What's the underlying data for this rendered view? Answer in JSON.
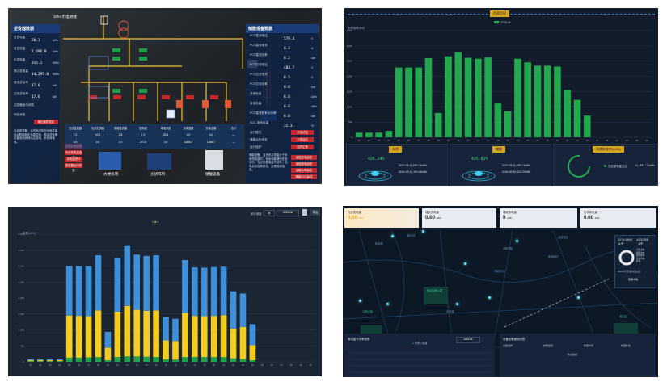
{
  "top_left": {
    "line_title": "10kV市电进线",
    "left_panel": {
      "title": "逆变器数据",
      "rows": [
        {
          "label": "日发电量",
          "value": "20.1",
          "unit": "kWh"
        },
        {
          "label": "月发电量",
          "value": "2,696.9",
          "unit": "kWh"
        },
        {
          "label": "年发电量",
          "value": "315.1",
          "unit": "MWh"
        },
        {
          "label": "累计发电量",
          "value": "14,295.0",
          "unit": "MWh"
        },
        {
          "label": "直流总功率",
          "value": "17.6",
          "unit": "kW"
        },
        {
          "label": "交流总功率",
          "value": "17.6",
          "unit": "kW"
        },
        {
          "label": "逆变器运行状态",
          "value": "",
          "unit": ""
        }
      ],
      "buttons": [
        "网关状态",
        "输出保护设定"
      ],
      "description": "光伏逆变器：光伏板中的光伏组件能将太阳能转化为直流电，再由逆变器将直流电转换为交流电，供负荷使用。",
      "red_buttons": [
        "负荷功率曲线",
        "光伏发电量曲线",
        "发电量统计",
        "逆变器运行状态"
      ]
    },
    "right_panel": {
      "title": "储能设备数据",
      "rows": [
        {
          "label": "PCS直流电压",
          "value": "579.4",
          "unit": "V"
        },
        {
          "label": "PCS直流电流",
          "value": "0.4",
          "unit": "A"
        },
        {
          "label": "PCS直流功率",
          "value": "0.2",
          "unit": "kW"
        },
        {
          "label": "PCS交流电压",
          "value": "403.7",
          "unit": "V"
        },
        {
          "label": "PCS交流电流",
          "value": "0.5",
          "unit": "A"
        },
        {
          "label": "PCS交流功率",
          "value": "0.0",
          "unit": "kW"
        },
        {
          "label": "充电电量",
          "value": "0.0",
          "unit": "kWh"
        },
        {
          "label": "放电电量",
          "value": "0.0",
          "unit": "kWh"
        },
        {
          "label": "PCS直流侧有功功率",
          "value": "0.0",
          "unit": "kW"
        },
        {
          "label": "SOC 电池电量",
          "value": "22.3",
          "unit": "%"
        }
      ],
      "status_rows": [
        {
          "label": "运行模式",
          "badge": "充电状态"
        },
        {
          "label": "储能运行状态",
          "badge": "正常运行"
        },
        {
          "label": "运行保护",
          "badge": "保护正常"
        }
      ],
      "description": "储能设备：当光伏发电量大于负荷用电量时，多余电能储存在电池中；当光伏发电量不足时，由电池向负荷供电，实现削峰填谷。",
      "red_buttons": [
        "储能充电曲线",
        "储能放电曲线",
        "储能功率曲线",
        "储能SOC曲线"
      ]
    },
    "top_button": "返回",
    "bottom_labels": [
      "大楼负荷",
      "光伏阵列",
      "储能设备"
    ],
    "table": {
      "headers": [
        "光伏逆变器",
        "光伏汇流箱",
        "储能变流器",
        "配电柜",
        "电池系统",
        "负荷回路",
        "负荷总路",
        "合计"
      ],
      "rows": [
        [
          "7.2",
          "10.3",
          "2.8",
          "7.2",
          "23.4",
          "0.0",
          "0.0",
          "—"
        ],
        [
          "0.8",
          "0.0",
          "1.0",
          "271.5",
          "0.0",
          "3,836.7",
          "1,466.7",
          "—"
        ]
      ]
    }
  },
  "top_right": {
    "chart_title": "负荷功率",
    "legend": "2023-06",
    "unit_label": "负荷功率(kW)",
    "chart_data": {
      "type": "bar",
      "categories": [
        "01",
        "02",
        "03",
        "04",
        "05",
        "06",
        "07",
        "08",
        "09",
        "10",
        "11",
        "12",
        "13",
        "14",
        "15",
        "16",
        "17",
        "18",
        "19",
        "20",
        "21",
        "22",
        "23",
        "24",
        "25",
        "26",
        "27",
        "28",
        "29",
        "30"
      ],
      "values": [
        150,
        150,
        150,
        210,
        2290,
        2290,
        2290,
        2600,
        800,
        2660,
        2800,
        2610,
        2580,
        2620,
        1110,
        850,
        2580,
        2460,
        2350,
        2350,
        2320,
        1550,
        1230,
        710,
        0,
        0,
        0,
        0,
        0,
        0
      ],
      "ylim": [
        0,
        3500
      ],
      "yticks": [
        "0",
        "500",
        "1,000",
        "1,500",
        "2,000",
        "2,500",
        "3,000",
        "3,500"
      ],
      "color": "#22a84f"
    },
    "cards": [
      {
        "title": "光伏",
        "percent": "426.14%",
        "rows": [
          "2023-05    11,885.21kWh",
          "2024-05    41,192.61kWh"
        ]
      },
      {
        "title": "储能",
        "percent": "425.81%",
        "rows": [
          "2023-05    11,885.21kWh",
          "2024-05    42,510.37kWh"
        ]
      },
      {
        "title": "光储发电节(kWh)",
        "legend": "光伏发电量占比",
        "value": "11,883.21kWh"
      }
    ]
  },
  "bottom_left": {
    "controls": {
      "label": "统计维度:",
      "select": "月",
      "date": "2023-06",
      "export": "导出"
    },
    "legend": [
      "■",
      "■",
      "■"
    ],
    "unit_label": "电量(kWh)",
    "chart_data": {
      "type": "bar",
      "categories": [
        "01",
        "02",
        "03",
        "04",
        "05",
        "06",
        "07",
        "08",
        "09",
        "10",
        "11",
        "12",
        "13",
        "14",
        "15",
        "16",
        "17",
        "18",
        "19",
        "20",
        "21",
        "22",
        "23",
        "24",
        "25",
        "26",
        "27",
        "28",
        "29",
        "30"
      ],
      "series": [
        {
          "values": [
            20,
            20,
            20,
            20,
            130,
            130,
            140,
            150,
            50,
            150,
            170,
            170,
            160,
            150,
            80,
            70,
            150,
            150,
            150,
            150,
            150,
            110,
            90,
            50,
            0,
            0,
            0,
            0,
            0,
            0
          ],
          "color": "#1fa24c"
        },
        {
          "values": [
            30,
            30,
            30,
            30,
            1320,
            1310,
            1290,
            1460,
            390,
            1420,
            1580,
            1460,
            1440,
            1460,
            590,
            580,
            1380,
            1290,
            1280,
            1290,
            1310,
            930,
            1000,
            470,
            0,
            0,
            0,
            0,
            0,
            0
          ],
          "color": "#f4cc1d"
        },
        {
          "values": [
            30,
            30,
            30,
            30,
            1550,
            1560,
            1570,
            1730,
            500,
            1680,
            1880,
            1730,
            1720,
            1730,
            740,
            700,
            1660,
            1520,
            1520,
            1530,
            1520,
            1170,
            1050,
            660,
            0,
            0,
            0,
            0,
            0,
            0
          ],
          "color": "#3c8fd8"
        }
      ],
      "ylim": [
        0,
        4000
      ],
      "yticks": [
        "0",
        "500",
        "1,000",
        "1,500",
        "2,000",
        "2,500",
        "3,000",
        "3,500",
        "4,000"
      ]
    }
  },
  "bottom_right": {
    "stats": [
      {
        "title": "光伏发电量",
        "value": "0.00",
        "unit": "kWh"
      },
      {
        "title": "储能充电量",
        "value": "0.00",
        "unit": "kWh"
      },
      {
        "title": "储能放电量",
        "value": "0",
        "unit": "kWh"
      },
      {
        "title": "负荷用电量",
        "value": "0.00",
        "unit": "kWh"
      }
    ],
    "map_labels": [
      "紫金港",
      "和平村",
      "创新园区",
      "新城南区",
      "科技中心",
      "西溪湿地公园",
      "北部新区",
      "未来城",
      "云栖小镇",
      "滨江区"
    ],
    "side_panel": {
      "title1": "运行站点数量",
      "value1": "2个",
      "title2": "总装机容量",
      "value2": "1个",
      "legend": [
        "光伏发电",
        "储能充电",
        "储能放电",
        "负荷用电",
        "其他"
      ],
      "note": "2023年光伏发电量占比",
      "link": "查看详情"
    },
    "bottom_chart": {
      "title": "用电量与功率趋势",
      "legend": [
        "光伏",
        "负荷"
      ],
      "date": "2023-06"
    },
    "table": {
      "title": "设备告警通知列表",
      "headers": [
        "设备名称",
        "告警级别",
        "告警时间",
        "处理状态"
      ],
      "empty": "暂无数据"
    }
  },
  "colors": {
    "accent_green": "#22a84f",
    "accent_yellow": "#f4cc1d",
    "accent_blue": "#3c8fd8",
    "alarm_red": "#c0282d"
  }
}
